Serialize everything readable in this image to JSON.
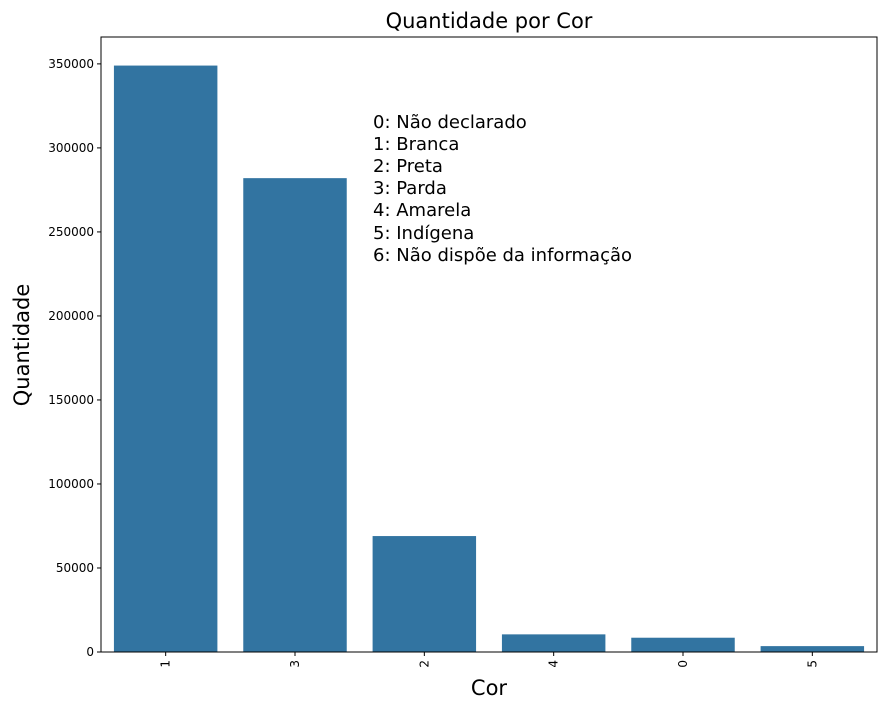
{
  "chart_data": {
    "type": "bar",
    "title": "Quantidade por Cor",
    "xlabel": "Cor",
    "ylabel": "Quantidade",
    "categories": [
      "1",
      "3",
      "2",
      "4",
      "0",
      "5"
    ],
    "values": [
      349000,
      282000,
      69000,
      10500,
      8500,
      3500
    ],
    "ylim": [
      0,
      366000
    ],
    "yticks": [
      0,
      50000,
      100000,
      150000,
      200000,
      250000,
      300000,
      350000
    ],
    "ytick_labels": [
      "0",
      "50000",
      "100000",
      "150000",
      "200000",
      "250000",
      "300000",
      "350000"
    ],
    "bar_color": "#3274a1",
    "grid": false,
    "annotation_lines": [
      "0: Não declarado",
      "1: Branca",
      "2: Preta",
      "3: Parda",
      "4: Amarela",
      "5: Indígena",
      "6: Não dispõe da informação"
    ]
  }
}
